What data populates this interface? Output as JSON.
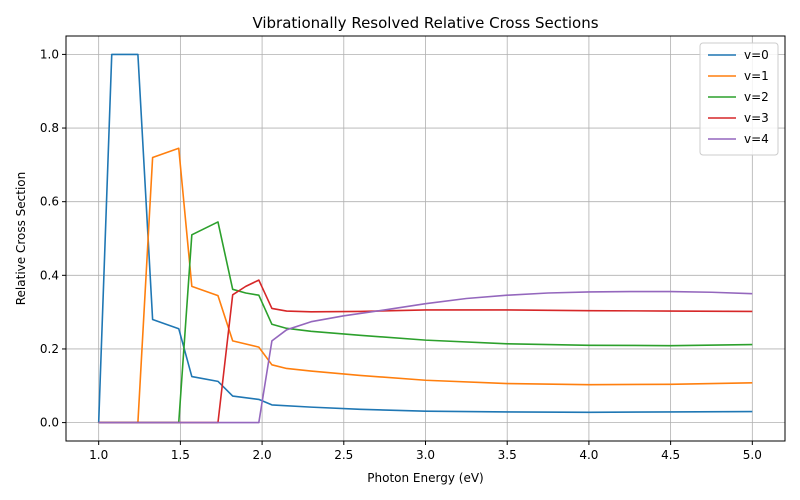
{
  "chart_data": {
    "type": "line",
    "title": "Vibrationally Resolved Relative Cross Sections",
    "xlabel": "Photon Energy (eV)",
    "ylabel": "Relative Cross Section",
    "xlim": [
      0.8,
      5.2
    ],
    "ylim": [
      -0.05,
      1.05
    ],
    "xticks": [
      1.0,
      1.5,
      2.0,
      2.5,
      3.0,
      3.5,
      4.0,
      4.5,
      5.0
    ],
    "xtick_labels": [
      "1.0",
      "1.5",
      "2.0",
      "2.5",
      "3.0",
      "3.5",
      "4.0",
      "4.5",
      "5.0"
    ],
    "yticks": [
      0.0,
      0.2,
      0.4,
      0.6,
      0.8,
      1.0
    ],
    "ytick_labels": [
      "0.0",
      "0.2",
      "0.4",
      "0.6",
      "0.8",
      "1.0"
    ],
    "grid": true,
    "legend_position": "top-right",
    "series": [
      {
        "name": "v=0",
        "color": "#1f77b4",
        "points": [
          [
            1.0,
            0.0
          ],
          [
            1.08,
            1.0
          ],
          [
            1.24,
            1.0
          ],
          [
            1.33,
            0.28
          ],
          [
            1.49,
            0.255
          ],
          [
            1.57,
            0.125
          ],
          [
            1.73,
            0.112
          ],
          [
            1.82,
            0.072
          ],
          [
            1.98,
            0.063
          ],
          [
            2.06,
            0.048
          ],
          [
            2.3,
            0.042
          ],
          [
            2.6,
            0.036
          ],
          [
            3.0,
            0.031
          ],
          [
            3.5,
            0.029
          ],
          [
            4.0,
            0.028
          ],
          [
            4.5,
            0.029
          ],
          [
            5.0,
            0.03
          ]
        ]
      },
      {
        "name": "v=1",
        "color": "#ff7f0e",
        "points": [
          [
            1.0,
            0.0
          ],
          [
            1.24,
            0.0
          ],
          [
            1.33,
            0.72
          ],
          [
            1.49,
            0.745
          ],
          [
            1.57,
            0.37
          ],
          [
            1.73,
            0.345
          ],
          [
            1.82,
            0.222
          ],
          [
            1.98,
            0.205
          ],
          [
            2.06,
            0.157
          ],
          [
            2.15,
            0.147
          ],
          [
            2.3,
            0.14
          ],
          [
            2.6,
            0.128
          ],
          [
            3.0,
            0.115
          ],
          [
            3.5,
            0.106
          ],
          [
            4.0,
            0.103
          ],
          [
            4.5,
            0.104
          ],
          [
            5.0,
            0.108
          ]
        ]
      },
      {
        "name": "v=2",
        "color": "#2ca02c",
        "points": [
          [
            1.0,
            0.0
          ],
          [
            1.49,
            0.0
          ],
          [
            1.57,
            0.51
          ],
          [
            1.73,
            0.545
          ],
          [
            1.82,
            0.362
          ],
          [
            1.9,
            0.352
          ],
          [
            1.98,
            0.346
          ],
          [
            2.06,
            0.267
          ],
          [
            2.15,
            0.256
          ],
          [
            2.3,
            0.248
          ],
          [
            2.6,
            0.237
          ],
          [
            3.0,
            0.224
          ],
          [
            3.5,
            0.214
          ],
          [
            4.0,
            0.21
          ],
          [
            4.5,
            0.209
          ],
          [
            5.0,
            0.212
          ]
        ]
      },
      {
        "name": "v=3",
        "color": "#d62728",
        "points": [
          [
            1.0,
            0.0
          ],
          [
            1.73,
            0.0
          ],
          [
            1.82,
            0.347
          ],
          [
            1.9,
            0.37
          ],
          [
            1.98,
            0.387
          ],
          [
            2.06,
            0.31
          ],
          [
            2.15,
            0.303
          ],
          [
            2.3,
            0.301
          ],
          [
            2.6,
            0.302
          ],
          [
            3.0,
            0.306
          ],
          [
            3.5,
            0.306
          ],
          [
            4.0,
            0.304
          ],
          [
            4.5,
            0.303
          ],
          [
            5.0,
            0.302
          ]
        ]
      },
      {
        "name": "v=4",
        "color": "#9467bd",
        "points": [
          [
            1.0,
            0.0
          ],
          [
            1.98,
            0.0
          ],
          [
            2.06,
            0.222
          ],
          [
            2.15,
            0.252
          ],
          [
            2.3,
            0.274
          ],
          [
            2.5,
            0.29
          ],
          [
            2.75,
            0.306
          ],
          [
            3.0,
            0.323
          ],
          [
            3.25,
            0.337
          ],
          [
            3.5,
            0.346
          ],
          [
            3.75,
            0.352
          ],
          [
            4.0,
            0.355
          ],
          [
            4.25,
            0.356
          ],
          [
            4.5,
            0.356
          ],
          [
            4.75,
            0.354
          ],
          [
            5.0,
            0.35
          ]
        ]
      }
    ]
  }
}
